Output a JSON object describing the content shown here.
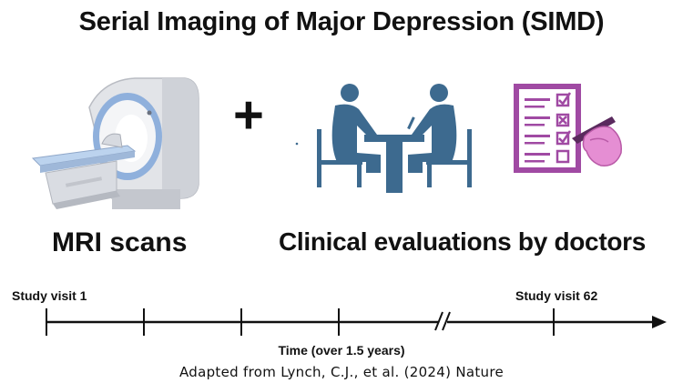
{
  "title": "Serial Imaging of Major Depression (SIMD)",
  "plus_sign": "+",
  "panels": {
    "mri_label": "MRI scans",
    "clinical_label": "Clinical evaluations by doctors"
  },
  "timeline": {
    "start_label": "Study visit 1",
    "end_label": "Study visit 62",
    "axis_label": "Time (over 1.5 years)"
  },
  "credit": "Adapted from Lynch, C.J., et al. (2024) Nature",
  "icons": {
    "mri": "mri-scanner-icon",
    "consultation": "doctor-patient-consultation-icon",
    "checklist": "checklist-clipboard-icon"
  },
  "colors": {
    "consultation": "#3d6a8f",
    "checklist_purple": "#a04aa3",
    "hand_pink": "#e58ed3",
    "mri_blue": "#8fb0dc"
  }
}
